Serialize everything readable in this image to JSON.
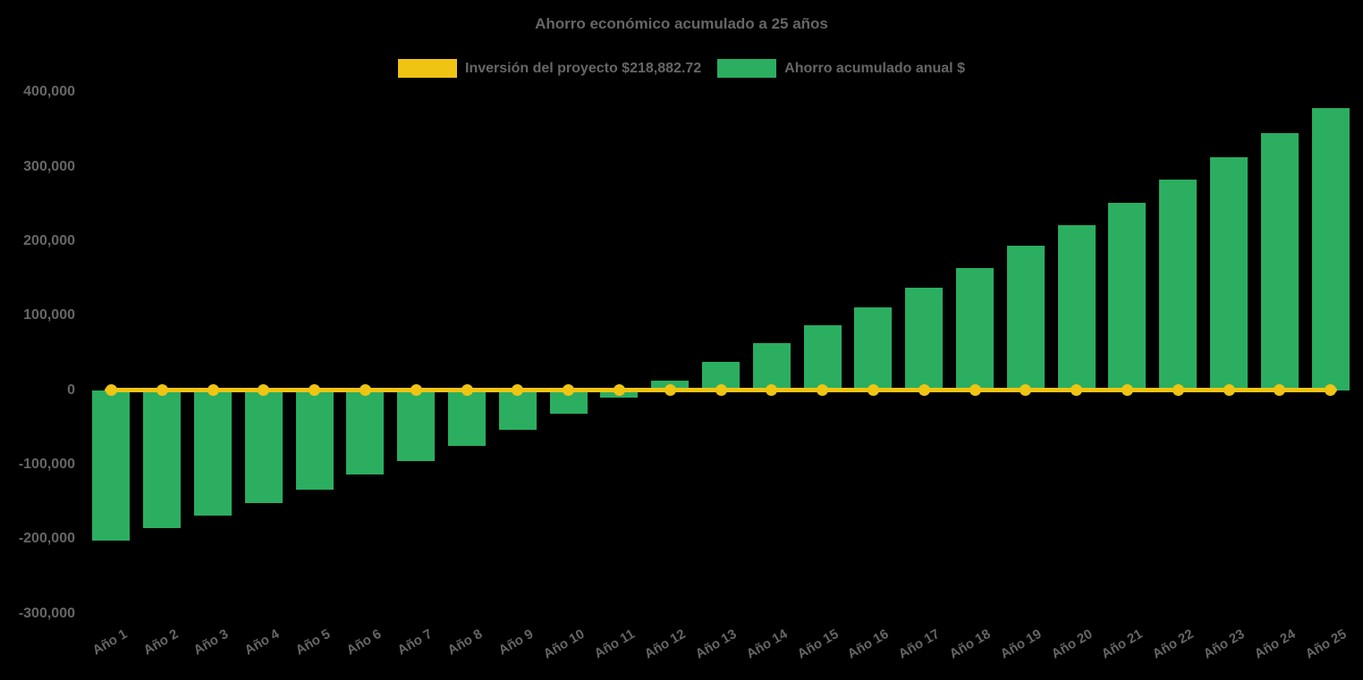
{
  "chart_data": {
    "type": "bar",
    "title": "Ahorro económico acumulado a 25 años",
    "categories": [
      "Año 1",
      "Año 2",
      "Año 3",
      "Año 4",
      "Año 5",
      "Año 6",
      "Año 7",
      "Año 8",
      "Año 9",
      "Año 10",
      "Año 11",
      "Año 12",
      "Año 13",
      "Año 14",
      "Año 15",
      "Año 16",
      "Año 17",
      "Año 18",
      "Año 19",
      "Año 20",
      "Año 21",
      "Año 22",
      "Año 23",
      "Año 24",
      "Año 25"
    ],
    "series": [
      {
        "name": "Inversión del proyecto $218,882.72",
        "type": "line",
        "color": "#EFC413",
        "values": [
          0,
          0,
          0,
          0,
          0,
          0,
          0,
          0,
          0,
          0,
          0,
          0,
          0,
          0,
          0,
          0,
          0,
          0,
          0,
          0,
          0,
          0,
          0,
          0,
          0
        ]
      },
      {
        "name": "Ahorro acumulado anual $",
        "type": "column",
        "color": "#2BAE60",
        "values": [
          -202500,
          -185500,
          -168800,
          -151000,
          -133000,
          -113500,
          -95200,
          -74200,
          -53000,
          -31400,
          -9500,
          13000,
          37800,
          62800,
          87000,
          111200,
          138200,
          164300,
          194000,
          221800,
          252000,
          282800,
          313200,
          345500,
          379000
        ]
      }
    ],
    "yticks": [
      {
        "value": 400000,
        "label": "400,000"
      },
      {
        "value": 300000,
        "label": "300,000"
      },
      {
        "value": 200000,
        "label": "200,000"
      },
      {
        "value": 100000,
        "label": "100,000"
      },
      {
        "value": 0,
        "label": "0"
      },
      {
        "value": -100000,
        "label": "-100,000"
      },
      {
        "value": -200000,
        "label": "-200,000"
      },
      {
        "value": -300000,
        "label": "-300,000"
      }
    ],
    "ylim": [
      -300000,
      400000
    ],
    "xlabel": "",
    "ylabel": "",
    "grid": false,
    "legend_position": "top",
    "colors": {
      "background": "#000000",
      "text": "#666666",
      "investment_line": "#EFC413",
      "savings_bar": "#2BAE60"
    }
  }
}
